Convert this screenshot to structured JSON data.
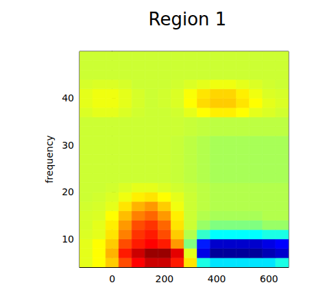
{
  "chart_data": {
    "type": "heatmap",
    "title": "Region 1",
    "ylabel": "frequency",
    "xlim": [
      -125,
      675
    ],
    "xticks": [
      0,
      200,
      400,
      600
    ],
    "ylim": [
      4,
      50
    ],
    "yticks": [
      10,
      20,
      30,
      40
    ],
    "zlim": [
      -1,
      1
    ],
    "x": [
      -100,
      -50,
      0,
      50,
      100,
      150,
      200,
      250,
      300,
      350,
      400,
      450,
      500,
      550,
      600,
      650
    ],
    "y": [
      5,
      7,
      9,
      11,
      13,
      15,
      17,
      19,
      21,
      23,
      25,
      27,
      29,
      31,
      33,
      35,
      37,
      39,
      41,
      43,
      45,
      47,
      49
    ],
    "z": [
      [
        0.2,
        0.25,
        0.35,
        0.6,
        0.75,
        0.85,
        0.85,
        0.7,
        0.3,
        -0.2,
        -0.3,
        -0.3,
        -0.3,
        -0.3,
        -0.3,
        -0.2
      ],
      [
        0.2,
        0.25,
        0.4,
        0.7,
        0.85,
        0.95,
        0.95,
        0.8,
        0.2,
        -0.8,
        -0.95,
        -0.95,
        -0.95,
        -0.95,
        -0.9,
        -0.85
      ],
      [
        0.2,
        0.25,
        0.35,
        0.6,
        0.7,
        0.75,
        0.7,
        0.45,
        0.0,
        -0.7,
        -0.85,
        -0.85,
        -0.85,
        -0.85,
        -0.8,
        -0.75
      ],
      [
        0.18,
        0.2,
        0.3,
        0.5,
        0.65,
        0.7,
        0.6,
        0.35,
        0.1,
        -0.15,
        -0.25,
        -0.25,
        -0.25,
        -0.25,
        -0.2,
        -0.2
      ],
      [
        0.17,
        0.2,
        0.28,
        0.45,
        0.6,
        0.65,
        0.55,
        0.3,
        0.15,
        0.05,
        0.0,
        0.0,
        0.0,
        0.0,
        0.05,
        0.05
      ],
      [
        0.17,
        0.18,
        0.25,
        0.38,
        0.5,
        0.55,
        0.45,
        0.28,
        0.15,
        0.1,
        0.08,
        0.08,
        0.08,
        0.08,
        0.1,
        0.1
      ],
      [
        0.16,
        0.17,
        0.2,
        0.3,
        0.4,
        0.45,
        0.35,
        0.22,
        0.15,
        0.12,
        0.1,
        0.1,
        0.1,
        0.1,
        0.1,
        0.1
      ],
      [
        0.15,
        0.16,
        0.18,
        0.22,
        0.28,
        0.3,
        0.25,
        0.2,
        0.15,
        0.12,
        0.1,
        0.1,
        0.1,
        0.1,
        0.1,
        0.1
      ],
      [
        0.15,
        0.15,
        0.16,
        0.18,
        0.2,
        0.2,
        0.18,
        0.16,
        0.14,
        0.12,
        0.1,
        0.1,
        0.1,
        0.1,
        0.1,
        0.1
      ],
      [
        0.15,
        0.15,
        0.15,
        0.15,
        0.15,
        0.15,
        0.15,
        0.14,
        0.12,
        0.1,
        0.08,
        0.08,
        0.08,
        0.08,
        0.08,
        0.08
      ],
      [
        0.15,
        0.15,
        0.15,
        0.15,
        0.15,
        0.15,
        0.15,
        0.14,
        0.12,
        0.1,
        0.08,
        0.08,
        0.08,
        0.08,
        0.08,
        0.08
      ],
      [
        0.15,
        0.15,
        0.15,
        0.15,
        0.15,
        0.15,
        0.15,
        0.14,
        0.12,
        0.1,
        0.08,
        0.08,
        0.08,
        0.08,
        0.08,
        0.08
      ],
      [
        0.15,
        0.15,
        0.15,
        0.15,
        0.15,
        0.15,
        0.15,
        0.14,
        0.12,
        0.1,
        0.08,
        0.08,
        0.08,
        0.08,
        0.08,
        0.08
      ],
      [
        0.15,
        0.15,
        0.15,
        0.15,
        0.15,
        0.15,
        0.15,
        0.14,
        0.12,
        0.1,
        0.08,
        0.08,
        0.08,
        0.08,
        0.08,
        0.08
      ],
      [
        0.15,
        0.15,
        0.15,
        0.15,
        0.15,
        0.15,
        0.15,
        0.15,
        0.14,
        0.13,
        0.12,
        0.12,
        0.12,
        0.12,
        0.12,
        0.12
      ],
      [
        0.15,
        0.15,
        0.15,
        0.15,
        0.15,
        0.15,
        0.15,
        0.15,
        0.14,
        0.13,
        0.12,
        0.12,
        0.12,
        0.12,
        0.12,
        0.12
      ],
      [
        0.18,
        0.2,
        0.2,
        0.18,
        0.16,
        0.15,
        0.15,
        0.16,
        0.2,
        0.25,
        0.28,
        0.28,
        0.25,
        0.2,
        0.18,
        0.16
      ],
      [
        0.2,
        0.22,
        0.22,
        0.2,
        0.17,
        0.15,
        0.16,
        0.18,
        0.25,
        0.32,
        0.35,
        0.35,
        0.3,
        0.25,
        0.2,
        0.18
      ],
      [
        0.2,
        0.22,
        0.22,
        0.2,
        0.17,
        0.15,
        0.16,
        0.18,
        0.24,
        0.3,
        0.33,
        0.33,
        0.28,
        0.22,
        0.18,
        0.17
      ],
      [
        0.17,
        0.18,
        0.18,
        0.17,
        0.15,
        0.15,
        0.15,
        0.16,
        0.18,
        0.2,
        0.22,
        0.22,
        0.2,
        0.18,
        0.16,
        0.15
      ],
      [
        0.15,
        0.15,
        0.15,
        0.15,
        0.15,
        0.15,
        0.15,
        0.15,
        0.15,
        0.15,
        0.15,
        0.15,
        0.15,
        0.15,
        0.15,
        0.15
      ],
      [
        0.15,
        0.15,
        0.15,
        0.15,
        0.15,
        0.15,
        0.15,
        0.15,
        0.15,
        0.15,
        0.15,
        0.15,
        0.15,
        0.15,
        0.15,
        0.15
      ],
      [
        0.15,
        0.15,
        0.15,
        0.15,
        0.15,
        0.15,
        0.15,
        0.15,
        0.15,
        0.15,
        0.15,
        0.15,
        0.15,
        0.15,
        0.15,
        0.15
      ]
    ]
  }
}
